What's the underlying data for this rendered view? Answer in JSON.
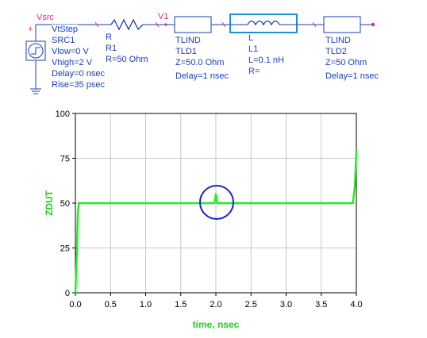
{
  "schematic": {
    "source": {
      "node_label": "Vsrc",
      "type": "VtStep",
      "name": "SRC1",
      "params": [
        "Vlow=0 V",
        "Vhigh=2 V",
        "Delay=0 nsec",
        "Rise=35 psec"
      ]
    },
    "resistor": {
      "type": "R",
      "name": "R1",
      "params": [
        "R=50 Ohm"
      ]
    },
    "node_v1": "V1",
    "tline1": {
      "type": "TLIND",
      "name": "TLD1",
      "params": [
        "Z=50.0 Ohm",
        "Delay=1 nsec"
      ]
    },
    "inductor": {
      "type": "L",
      "name": "L1",
      "params": [
        "L=0.1 nH",
        "R="
      ]
    },
    "tline2": {
      "type": "TLIND",
      "name": "TLD2",
      "params": [
        "Z=50 Ohm",
        "Delay=1 nsec"
      ]
    }
  },
  "colors": {
    "trace": "#22ee22",
    "wire": "#1a3fb0",
    "node": "#d0308c",
    "highlight": "#1e90d8",
    "annotation_circle": "#1a24c8"
  },
  "chart_data": {
    "type": "line",
    "title": "",
    "xlabel": "time, nsec",
    "ylabel": "ZDUT",
    "xlim": [
      0.0,
      4.0
    ],
    "ylim": [
      0,
      100
    ],
    "x_ticks": [
      "0.0",
      "0.5",
      "1.0",
      "1.5",
      "2.0",
      "2.5",
      "3.0",
      "3.5",
      "4.0"
    ],
    "y_ticks": [
      "0",
      "25",
      "50",
      "75",
      "100"
    ],
    "grid": true,
    "series": [
      {
        "x": [
          0.0,
          0.02,
          0.035,
          0.05,
          1.95,
          1.98,
          2.0,
          2.02,
          2.05,
          3.95,
          3.98,
          4.0
        ],
        "y": [
          0,
          22,
          45,
          50,
          50,
          50,
          55,
          50,
          50,
          50,
          60,
          80
        ]
      }
    ]
  }
}
